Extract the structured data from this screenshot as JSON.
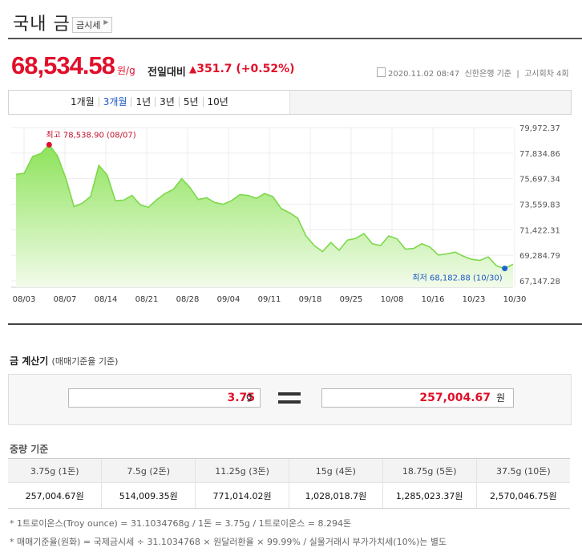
{
  "header": {
    "title": "국내 금",
    "tag": "금시세"
  },
  "price": {
    "value": "68,534.58",
    "unit": "원/g",
    "compare_label": "전일대비",
    "change": "351.7 (+0.52%)",
    "direction": "up",
    "meta": "2020.11.02 08:47  신한은행 기준  |  고시회차 4회"
  },
  "tabs": [
    "1개월",
    "3개월",
    "1년",
    "3년",
    "5년",
    "10년"
  ],
  "active_tab": "3개월",
  "chart_data": {
    "type": "area",
    "x_labels": [
      "08/03",
      "08/07",
      "08/14",
      "08/21",
      "08/28",
      "09/04",
      "09/11",
      "09/18",
      "09/25",
      "10/08",
      "10/16",
      "10/23",
      "10/30"
    ],
    "y_ticks": [
      "79,972.37",
      "77,834.86",
      "75,697.34",
      "73,559.83",
      "71,422.31",
      "69,284.79",
      "67,147.28"
    ],
    "ylim": [
      67147.28,
      79972.37
    ],
    "high_label": "최고 78,538.90 (08/07)",
    "low_label": "최저 68,182.88 (10/30)",
    "values": [
      76050,
      76150,
      77550,
      77800,
      78538.9,
      77600,
      75750,
      73350,
      73650,
      74200,
      76800,
      76000,
      73850,
      73900,
      74300,
      73500,
      73300,
      73950,
      74450,
      74800,
      75700,
      74950,
      73950,
      74100,
      73700,
      73550,
      73850,
      74350,
      74300,
      74050,
      74450,
      74200,
      73200,
      72850,
      72400,
      70900,
      70100,
      69600,
      70350,
      69700,
      70550,
      70700,
      71100,
      70250,
      70100,
      70900,
      70650,
      69800,
      69850,
      70250,
      69950,
      69300,
      69400,
      69550,
      69200,
      68950,
      68850,
      69150,
      68400,
      68182.88,
      68534.58
    ],
    "color": "#7cd84a",
    "grid": true
  },
  "calculator": {
    "title": "금 계산기",
    "subtitle": "(매매기준율 기준)",
    "weight_value": "3.75",
    "weight_unit": "g",
    "price_value": "257,004.67",
    "price_unit": "원"
  },
  "weight_table": {
    "title": "중량 기준",
    "headers": [
      "3.75g (1돈)",
      "7.5g (2돈)",
      "11.25g (3돈)",
      "15g (4돈)",
      "18.75g (5돈)",
      "37.5g (10돈)"
    ],
    "values": [
      "257,004.67원",
      "514,009.35원",
      "771,014.02원",
      "1,028,018.7원",
      "1,285,023.37원",
      "2,570,046.75원"
    ]
  },
  "notes": [
    "* 1트로이온스(Troy ounce) = 31.1034768g / 1돈 = 3.75g / 1트로이온스 = 8.294돈",
    "* 매매기준율(원화) = 국제금시세 ÷ 31.1034768 × 원달러환율 × 99.99% / 실물거래시 부가가치세(10%)는 별도"
  ]
}
